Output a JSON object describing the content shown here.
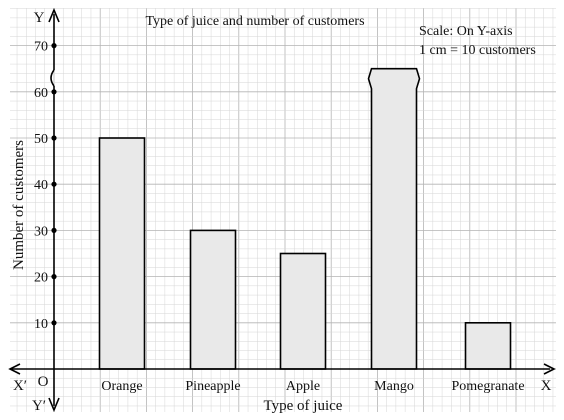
{
  "chart_data": {
    "type": "bar",
    "title": "Type of juice and number of customers",
    "scale_note": [
      "Scale: On Y-axis",
      "1 cm = 10 customers"
    ],
    "xlabel": "Type of juice",
    "ylabel": "Number of customers",
    "categories": [
      "Orange",
      "Pineapple",
      "Apple",
      "Mango",
      "Pomegranate"
    ],
    "values": [
      50,
      30,
      25,
      65,
      10
    ],
    "yticks": [
      "10",
      "20",
      "30",
      "40",
      "50",
      "60",
      "70"
    ],
    "ylim": [
      0,
      75
    ],
    "axis_labels": {
      "x_pos": "X",
      "x_neg": "X′",
      "y_pos": "Y",
      "y_neg": "Y′",
      "origin": "O"
    },
    "grid": true,
    "axis_break": true
  }
}
